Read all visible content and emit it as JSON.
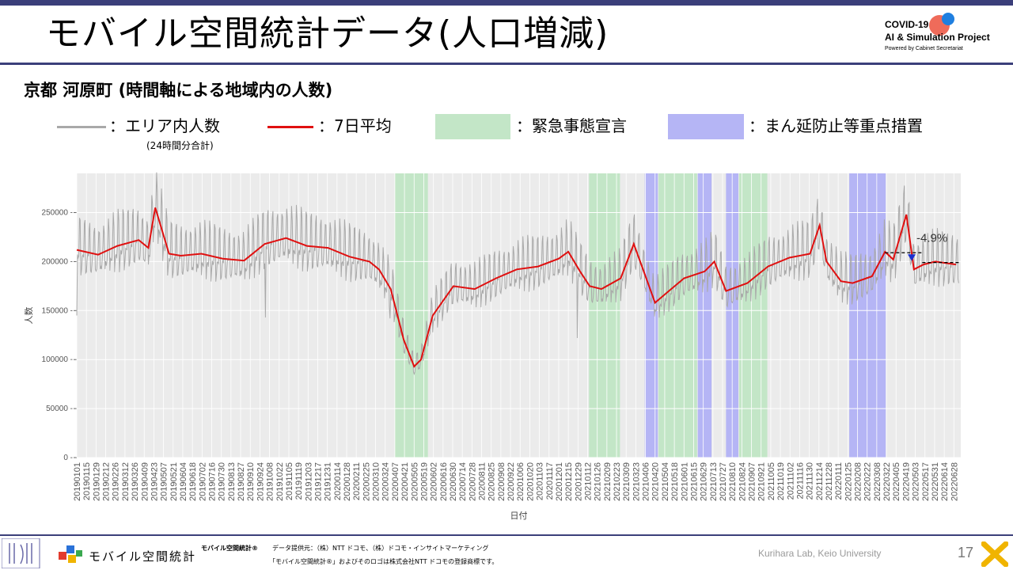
{
  "slide": {
    "title": "モバイル空間統計データ(人口増減)",
    "subtitle": "京都 河原町 (時間軸による地域内の人数)",
    "page_number": "17",
    "credit": "Kurihara Lab, Keio University"
  },
  "logo": {
    "line1": "COVID-19",
    "line2": "AI & Simulation Project",
    "line3": "Powered by Cabinet Secretariat"
  },
  "legend": {
    "area_label": "：エリア内人数",
    "area_note": "(24時間分合計)",
    "avg_label": "：7日平均",
    "emergency_label": "：緊急事態宣言",
    "manbo_label": "：まん延防止等重点措置"
  },
  "footer": {
    "brand": "モバイル空間統計",
    "brand_small": "モバイル空間統計®",
    "source": "データ提供元：（株）NTT ドコモ、（株）ドコモ・インサイトマーケティング",
    "trademark": "「モバイル空間統計®」およびそのロゴは株式会社NTT ドコモの登録商標です。"
  },
  "colors": {
    "accent": "#3b3f7a",
    "daily_line": "#a9a9a9",
    "avg_line": "#e01010",
    "emergency": "#c3e6c7",
    "manbo": "#b5b5f5",
    "plot_bg": "#ebebeb"
  },
  "chart_data": {
    "type": "line",
    "xlabel": "日付",
    "ylabel": "人数",
    "ylim": [
      0,
      290000
    ],
    "y_ticks": [
      "0",
      "50000",
      "100000",
      "150000",
      "200000",
      "250000"
    ],
    "x_tick_labels": [
      "20190101",
      "20190115",
      "20190129",
      "20190212",
      "20190226",
      "20190312",
      "20190326",
      "20190409",
      "20190423",
      "20190507",
      "20190521",
      "20190604",
      "20190618",
      "20190702",
      "20190716",
      "20190730",
      "20190813",
      "20190827",
      "20190910",
      "20190924",
      "20191008",
      "20191022",
      "20191105",
      "20191119",
      "20191203",
      "20191217",
      "20191231",
      "20200114",
      "20200128",
      "20200211",
      "20200225",
      "20200310",
      "20200324",
      "20200407",
      "20200421",
      "20200505",
      "20200519",
      "20200602",
      "20200616",
      "20200630",
      "20200714",
      "20200728",
      "20200811",
      "20200825",
      "20200908",
      "20200922",
      "20201006",
      "20201020",
      "20201103",
      "20201117",
      "20201201",
      "20201215",
      "20201229",
      "20210112",
      "20210126",
      "20210209",
      "20210223",
      "20210309",
      "20210323",
      "20210406",
      "20210420",
      "20210504",
      "20210518",
      "20210601",
      "20210615",
      "20210629",
      "20210713",
      "20210727",
      "20210810",
      "20210824",
      "20210907",
      "20210921",
      "20211005",
      "20211019",
      "20211102",
      "20211116",
      "20211130",
      "20211214",
      "20211228",
      "20220111",
      "20220125",
      "20220208",
      "20220222",
      "20220308",
      "20220322",
      "20220405",
      "20220419",
      "20220503",
      "20220517",
      "20220531",
      "20220614",
      "20220628"
    ],
    "shaded_periods": [
      {
        "type": "emergency",
        "start": "20200407",
        "end": "20200525"
      },
      {
        "type": "emergency",
        "start": "20210114",
        "end": "20210228"
      },
      {
        "type": "manbo",
        "start": "20210405",
        "end": "20210424"
      },
      {
        "type": "emergency",
        "start": "20210425",
        "end": "20210620"
      },
      {
        "type": "manbo",
        "start": "20210621",
        "end": "20210711"
      },
      {
        "type": "manbo",
        "start": "20210801",
        "end": "20210819"
      },
      {
        "type": "emergency",
        "start": "20210820",
        "end": "20210930"
      },
      {
        "type": "manbo",
        "start": "20220127",
        "end": "20220321"
      }
    ],
    "series": [
      {
        "name": "7日平均",
        "x": [
          "20190101",
          "20190201",
          "20190301",
          "20190401",
          "20190415",
          "20190425",
          "20190515",
          "20190601",
          "20190701",
          "20190801",
          "20190901",
          "20191001",
          "20191101",
          "20191201",
          "20200101",
          "20200201",
          "20200301",
          "20200315",
          "20200401",
          "20200420",
          "20200505",
          "20200515",
          "20200601",
          "20200701",
          "20200801",
          "20200901",
          "20201001",
          "20201101",
          "20201201",
          "20201215",
          "20210101",
          "20210115",
          "20210201",
          "20210301",
          "20210320",
          "20210401",
          "20210420",
          "20210510",
          "20210601",
          "20210701",
          "20210715",
          "20210801",
          "20210901",
          "20211001",
          "20211101",
          "20211201",
          "20211215",
          "20211225",
          "20220115",
          "20220201",
          "20220301",
          "20220320",
          "20220401",
          "20220420",
          "20220501",
          "20220515",
          "20220601",
          "20220701"
        ],
        "y": [
          212000,
          207000,
          216000,
          222000,
          214000,
          255000,
          208000,
          206000,
          208000,
          203000,
          201000,
          218000,
          224000,
          216000,
          214000,
          205000,
          200000,
          192000,
          172000,
          120000,
          93000,
          100000,
          145000,
          175000,
          172000,
          183000,
          192000,
          195000,
          203000,
          210000,
          190000,
          175000,
          172000,
          183000,
          218000,
          195000,
          158000,
          170000,
          183000,
          190000,
          200000,
          170000,
          178000,
          195000,
          204000,
          208000,
          237000,
          200000,
          180000,
          178000,
          185000,
          210000,
          202000,
          248000,
          192000,
          197000,
          200000,
          197000
        ]
      },
      {
        "name": "エリア内人数",
        "x": [
          "20190101",
          "20191002",
          "20200331",
          "20201228",
          "20220705"
        ],
        "y": [
          145000,
          143000,
          142000,
          122000,
          178000
        ]
      }
    ],
    "annotation": {
      "text": "-4.9%",
      "start_value": 209000,
      "end_value": 199000
    }
  }
}
